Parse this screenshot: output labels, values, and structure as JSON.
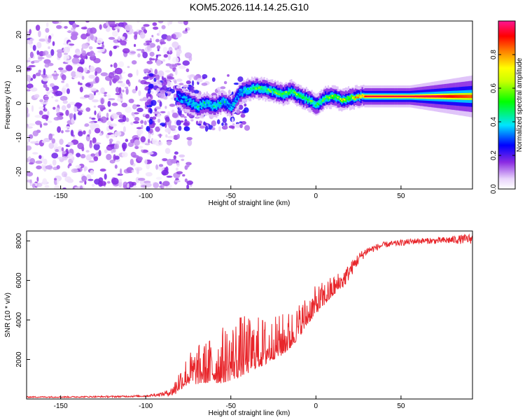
{
  "figure_title": "KOM5.2026.114.14.25.G10",
  "chart_data": [
    {
      "type": "heatmap",
      "title": "KOM5.2026.114.14.25.G10",
      "xlabel": "Height of straight line (km)",
      "ylabel": "Frequency (Hz)",
      "xlim": [
        -170,
        92
      ],
      "ylim": [
        -25,
        24
      ],
      "xticks": [
        -150,
        -100,
        -50,
        0,
        50
      ],
      "yticks": [
        -20,
        -10,
        0,
        10,
        20
      ],
      "xtick_labels": [
        "-150",
        "-100",
        "-50",
        "0",
        "50"
      ],
      "ytick_labels": [
        "-20",
        "-10",
        "0",
        "10",
        "20"
      ],
      "colorbar": {
        "label": "Normalized spectral amplitude",
        "range": [
          0,
          1
        ],
        "ticks": [
          0.0,
          0.2,
          0.4,
          0.6,
          0.8
        ],
        "tick_labels": [
          "0.0",
          "0.2",
          "0.4",
          "0.6",
          "0.8"
        ],
        "colormap": "rainbow (white-violet-blue-cyan-green-yellow-red-magenta)"
      },
      "ridge": {
        "description": "dominant frequency ridge vs height",
        "x": [
          -82,
          -75,
          -70,
          -65,
          -60,
          -55,
          -50,
          -45,
          -40,
          -35,
          -30,
          -25,
          -20,
          -15,
          -10,
          -5,
          0,
          5,
          10,
          15,
          20,
          25,
          30,
          40,
          50,
          60,
          70,
          80,
          90
        ],
        "freq": [
          2.0,
          0.5,
          -1.0,
          0.0,
          -1.0,
          0.5,
          -1.0,
          3.0,
          4.0,
          4.5,
          4.0,
          3.5,
          2.5,
          3.5,
          2.0,
          1.0,
          -0.5,
          1.5,
          2.0,
          1.0,
          1.5,
          2.0,
          2.0,
          2.0,
          2.0,
          2.0,
          2.0,
          2.0,
          2.0
        ],
        "amplitude": [
          0.3,
          0.45,
          0.5,
          0.45,
          0.5,
          0.45,
          0.4,
          0.4,
          0.5,
          0.6,
          0.55,
          0.6,
          0.6,
          0.65,
          0.6,
          0.6,
          0.55,
          0.6,
          0.7,
          0.7,
          0.75,
          0.85,
          0.95,
          0.95,
          0.95,
          0.95,
          0.95,
          0.9,
          0.85
        ]
      },
      "noise_region": {
        "x_range": [
          -170,
          -80
        ],
        "amplitude_range": [
          0.0,
          0.15
        ]
      }
    },
    {
      "type": "line",
      "xlabel": "Height of straight line (km)",
      "ylabel": "SNR (10 * v/v)",
      "xlim": [
        -170,
        92
      ],
      "ylim": [
        0,
        8500
      ],
      "xticks": [
        -150,
        -100,
        -50,
        0,
        50
      ],
      "yticks": [
        2000,
        4000,
        6000,
        8000
      ],
      "xtick_labels": [
        "-150",
        "-100",
        "-50",
        "0",
        "50"
      ],
      "ytick_labels": [
        "2000",
        "4000",
        "6000",
        "8000"
      ],
      "series": [
        {
          "name": "SNR",
          "color": "#e8262b",
          "x": [
            -170,
            -150,
            -120,
            -100,
            -90,
            -85,
            -80,
            -75,
            -70,
            -65,
            -60,
            -55,
            -50,
            -45,
            -40,
            -35,
            -30,
            -25,
            -20,
            -15,
            -10,
            -5,
            0,
            5,
            10,
            15,
            20,
            25,
            30,
            40,
            50,
            60,
            70,
            80,
            90
          ],
          "y": [
            100,
            100,
            120,
            150,
            250,
            350,
            800,
            1200,
            1300,
            1400,
            1500,
            1600,
            1800,
            2000,
            2100,
            2300,
            2400,
            2600,
            2800,
            3100,
            3600,
            4200,
            4700,
            5100,
            5500,
            5900,
            6500,
            7100,
            7500,
            7800,
            7900,
            8000,
            8000,
            8050,
            8100
          ],
          "spread": [
            30,
            30,
            40,
            50,
            100,
            200,
            700,
            900,
            1100,
            1200,
            1400,
            1600,
            1700,
            1800,
            1600,
            1500,
            1400,
            1200,
            1200,
            1100,
            1000,
            900,
            800,
            700,
            600,
            500,
            400,
            300,
            200,
            150,
            150,
            150,
            150,
            200,
            250
          ]
        }
      ]
    }
  ]
}
